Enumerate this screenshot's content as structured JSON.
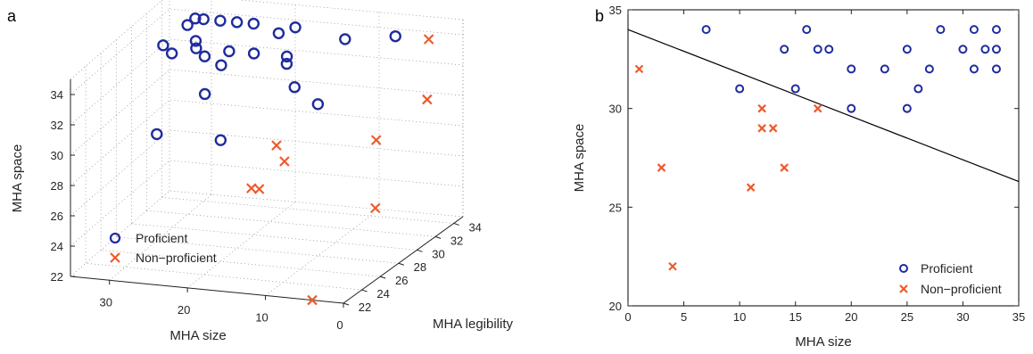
{
  "colors": {
    "proficient": "#1f2b9e",
    "non_proficient": "#ee5a2c",
    "axis": "#000000",
    "grid": "#777777"
  },
  "panels": {
    "a": "a",
    "b": "b"
  },
  "chart_data": [
    {
      "id": "a",
      "type": "scatter3d",
      "xlabel": "MHA size",
      "ylabel": "MHA legibility",
      "zlabel": "MHA space",
      "xlim": [
        0,
        35
      ],
      "ylim": [
        22,
        35
      ],
      "zlim": [
        22,
        35
      ],
      "xticks": [
        0,
        10,
        20,
        30
      ],
      "yticks": [
        22,
        24,
        26,
        28,
        30,
        32,
        34
      ],
      "zticks": [
        22,
        24,
        26,
        28,
        30,
        32,
        34
      ],
      "grid": true,
      "legend": {
        "position": "lower-left",
        "entries": [
          "Proficient",
          "Non−proficient"
        ]
      },
      "series": [
        {
          "name": "Proficient",
          "marker": "o",
          "points": [
            [
              31,
              34,
              34
            ],
            [
              30,
              34,
              34
            ],
            [
              28,
              34,
              34
            ],
            [
              26,
              34,
              34
            ],
            [
              31,
              33,
              34
            ],
            [
              30,
              33,
              33
            ],
            [
              24,
              34,
              34
            ],
            [
              29,
              32,
              33
            ],
            [
              19,
              34,
              34
            ],
            [
              33,
              32,
              33
            ],
            [
              31,
              31,
              33
            ],
            [
              27,
              31,
              33
            ],
            [
              25,
              32,
              33
            ],
            [
              20,
              33,
              34
            ],
            [
              22,
              32,
              33
            ],
            [
              24,
              30,
              33
            ],
            [
              26,
              30,
              31
            ],
            [
              18,
              32,
              33
            ],
            [
              17,
              31,
              33
            ],
            [
              15,
              30,
              32
            ],
            [
              12,
              33,
              34
            ],
            [
              7,
              34,
              34
            ],
            [
              28,
              26,
              30
            ],
            [
              20,
              26,
              30
            ],
            [
              10,
              28,
              32
            ]
          ]
        },
        {
          "name": "Non−proficient",
          "marker": "x",
          "points": [
            [
              13,
              26,
              30
            ],
            [
              12,
              26,
              29
            ],
            [
              3,
              34,
              34
            ],
            [
              1,
              32,
              31
            ],
            [
              4,
              29,
              25
            ],
            [
              14,
              24,
              28
            ],
            [
              13,
              24,
              28
            ],
            [
              5,
              30,
              29
            ],
            [
              4,
              22,
              22
            ]
          ]
        }
      ]
    },
    {
      "id": "b",
      "type": "scatter",
      "xlabel": "MHA size",
      "ylabel": "MHA space",
      "xlim": [
        0,
        35
      ],
      "ylim": [
        20,
        35
      ],
      "xticks": [
        0,
        5,
        10,
        15,
        20,
        25,
        30,
        35
      ],
      "yticks": [
        20,
        25,
        30,
        35
      ],
      "grid": false,
      "legend": {
        "position": "lower-right",
        "entries": [
          "Proficient",
          "Non−proficient"
        ]
      },
      "series": [
        {
          "name": "Proficient",
          "marker": "o",
          "x": [
            7,
            10,
            14,
            15,
            16,
            17,
            18,
            20,
            20,
            23,
            25,
            25,
            26,
            27,
            28,
            30,
            31,
            31,
            32,
            33,
            33,
            33
          ],
          "y": [
            34,
            31,
            33,
            31,
            34,
            33,
            33,
            32,
            30,
            32,
            33,
            30,
            31,
            32,
            34,
            33,
            34,
            32,
            33,
            34,
            33,
            32
          ]
        },
        {
          "name": "Non−proficient",
          "marker": "x",
          "x": [
            1,
            3,
            4,
            11,
            12,
            12,
            13,
            14,
            17
          ],
          "y": [
            32,
            27,
            22,
            26,
            30,
            29,
            29,
            27,
            30
          ]
        }
      ],
      "lines": [
        {
          "name": "",
          "x": [
            0,
            35
          ],
          "y": [
            34,
            26.3
          ]
        }
      ]
    }
  ]
}
